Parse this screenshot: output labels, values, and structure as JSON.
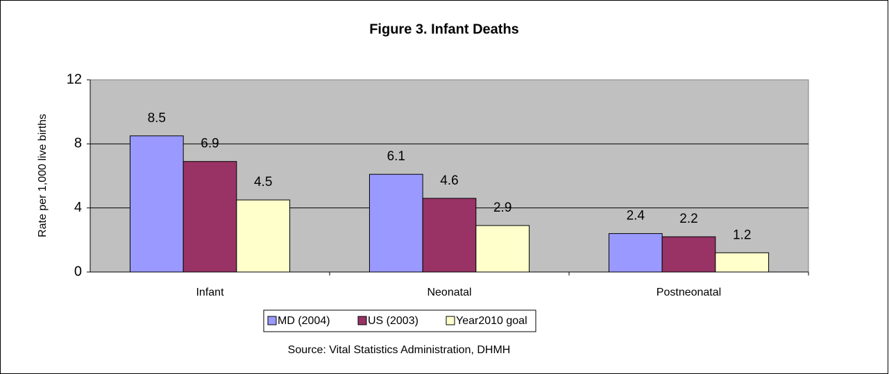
{
  "chart_data": {
    "type": "bar",
    "title": "Figure 3. Infant Deaths",
    "ylabel": "Rate per 1,000 live births",
    "source": "Source: Vital Statistics Administration, DHMH",
    "categories": [
      "Infant",
      "Neonatal",
      "Postneonatal"
    ],
    "series": [
      {
        "name": "MD (2004)",
        "color": "#9999ff",
        "values": [
          8.5,
          6.1,
          2.4
        ]
      },
      {
        "name": "US (2003)",
        "color": "#993366",
        "values": [
          6.9,
          4.6,
          2.2
        ]
      },
      {
        "name": "Year2010 goal",
        "color": "#ffffcc",
        "values": [
          4.5,
          2.9,
          1.2
        ]
      }
    ],
    "ylim": [
      0,
      12
    ],
    "yticks": [
      0,
      4,
      8,
      12
    ],
    "grid": true,
    "legend": "bottom"
  }
}
